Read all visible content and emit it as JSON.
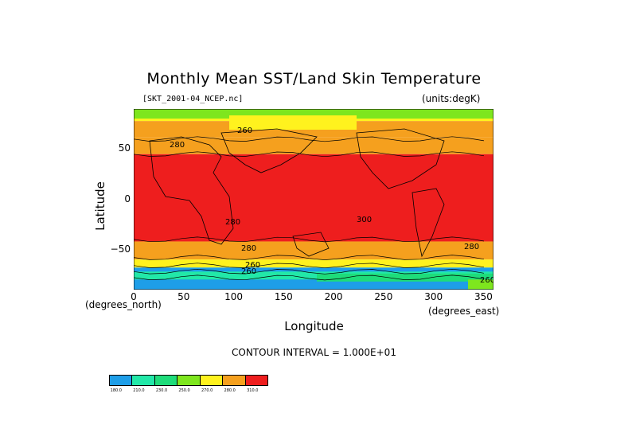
{
  "chart_data": {
    "type": "heatmap",
    "title": "Monthly Mean SST/Land Skin Temperature",
    "subtitle_left": "[SKT_2001-04_NCEP.nc]",
    "subtitle_right": "(units:degK)",
    "xlabel": "Longitude",
    "ylabel": "Latitude",
    "x_unit": "(degrees_east)",
    "y_unit": "(degrees_north)",
    "xlim": [
      0,
      360
    ],
    "ylim": [
      -90,
      90
    ],
    "x_ticks": [
      "0",
      "50",
      "100",
      "150",
      "200",
      "250",
      "300",
      "350"
    ],
    "y_ticks": [
      "50",
      "0",
      "−50"
    ],
    "contour_interval": "CONTOUR INTERVAL = 1.000E+01",
    "contour_labels": [
      "260",
      "280",
      "280",
      "300",
      "280",
      "280",
      "260",
      "260",
      "260"
    ],
    "colorbar": {
      "levels": [
        "180.0",
        "210.0",
        "230.0",
        "250.0",
        "270.0",
        "280.0",
        "310.0"
      ],
      "colors": [
        "#1e9ee8",
        "#22e8a8",
        "#1edc7a",
        "#7ee61e",
        "#fff21e",
        "#f5a01e",
        "#ee1e1e"
      ]
    },
    "bands": [
      {
        "from_lat": 90,
        "to_lat": 78,
        "value": "250–270"
      },
      {
        "from_lat": 78,
        "to_lat": 62,
        "value": "270–280"
      },
      {
        "from_lat": 62,
        "to_lat": 45,
        "value": "280–290"
      },
      {
        "from_lat": 45,
        "to_lat": -42,
        "value": "> 290"
      },
      {
        "from_lat": -42,
        "to_lat": -60,
        "value": "280–290"
      },
      {
        "from_lat": -60,
        "to_lat": -68,
        "value": "270–280"
      },
      {
        "from_lat": -68,
        "to_lat": -90,
        "value": "< 250"
      }
    ]
  }
}
